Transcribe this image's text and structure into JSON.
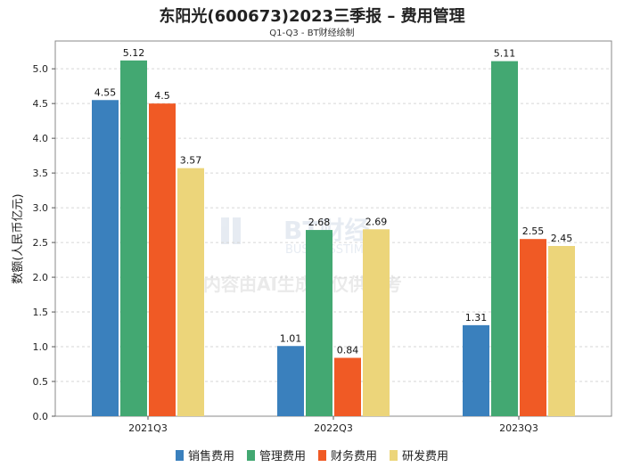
{
  "header": {
    "title": "东阳光(600673)2023三季报 – 费用管理",
    "subtitle": "Q1-Q3 - BT财经绘制"
  },
  "watermark": {
    "brand": "BT财经",
    "brand_en": "BUSINESSTIMES",
    "notice": "内容由AI生成，仅供参考"
  },
  "chart_data": {
    "type": "bar",
    "categories": [
      "2021Q3",
      "2022Q3",
      "2023Q3"
    ],
    "series": [
      {
        "name": "销售费用",
        "color": "#3a80bd",
        "values": [
          4.55,
          1.01,
          1.31
        ]
      },
      {
        "name": "管理费用",
        "color": "#43a872",
        "values": [
          5.12,
          2.68,
          5.11
        ]
      },
      {
        "name": "财务费用",
        "color": "#f05a25",
        "values": [
          4.5,
          0.84,
          2.55
        ]
      },
      {
        "name": "研发费用",
        "color": "#ecd57a",
        "values": [
          3.57,
          2.69,
          2.45
        ]
      }
    ],
    "ylabel": "数额(人民币亿元)",
    "ylim": [
      0,
      5.4
    ],
    "yticks": [
      "0.0",
      "0.5",
      "1.0",
      "1.5",
      "2.0",
      "2.5",
      "3.0",
      "3.5",
      "4.0",
      "4.5",
      "5.0"
    ],
    "legend_position": "bottom",
    "grid": true
  }
}
